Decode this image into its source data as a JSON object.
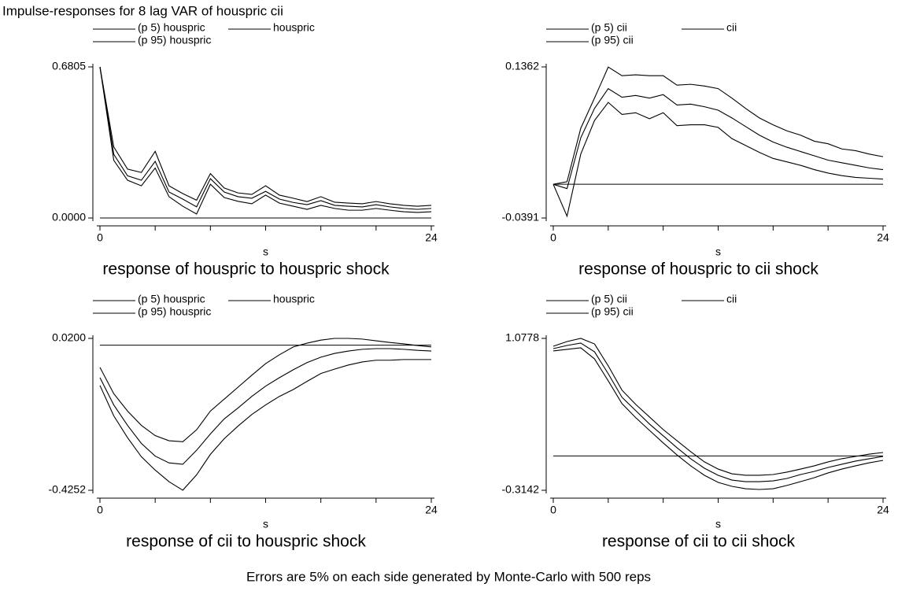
{
  "title": "Impulse-responses for 8 lag VAR of houspric cii",
  "note": "Errors are 5% on each side generated by Monte-Carlo with 500 reps",
  "chart_data": [
    {
      "type": "line",
      "subtitle": "response of houspric to houspric shock",
      "xlabel": "s",
      "x": [
        0,
        1,
        2,
        3,
        4,
        5,
        6,
        7,
        8,
        9,
        10,
        11,
        12,
        13,
        14,
        15,
        16,
        17,
        18,
        19,
        20,
        21,
        22,
        23,
        24
      ],
      "xlim": [
        0,
        24
      ],
      "xticks": [
        0,
        24
      ],
      "xminorticks": [
        4,
        8,
        12,
        16,
        20
      ],
      "ylim": [
        0,
        0.6805
      ],
      "yticks": [
        {
          "value": 0,
          "label": "0.0000"
        },
        0.6805
      ],
      "hline": 0,
      "series": [
        {
          "name": "(p 5) houspric",
          "color": "#000000",
          "values": [
            0.6805,
            0.26,
            0.17,
            0.145,
            0.225,
            0.096,
            0.053,
            0.018,
            0.152,
            0.092,
            0.075,
            0.064,
            0.103,
            0.067,
            0.053,
            0.039,
            0.057,
            0.043,
            0.035,
            0.035,
            0.043,
            0.035,
            0.028,
            0.025,
            0.028
          ]
        },
        {
          "name": "houspric",
          "color": "#000000",
          "values": [
            0.6805,
            0.287,
            0.19,
            0.17,
            0.255,
            0.117,
            0.085,
            0.05,
            0.177,
            0.117,
            0.096,
            0.089,
            0.12,
            0.085,
            0.07,
            0.06,
            0.078,
            0.057,
            0.053,
            0.05,
            0.06,
            0.05,
            0.043,
            0.039,
            0.043
          ]
        },
        {
          "name": "(p 95) houspric",
          "color": "#000000",
          "values": [
            0.6805,
            0.32,
            0.22,
            0.205,
            0.3,
            0.145,
            0.11,
            0.08,
            0.2,
            0.135,
            0.113,
            0.106,
            0.145,
            0.103,
            0.089,
            0.074,
            0.096,
            0.071,
            0.067,
            0.064,
            0.074,
            0.064,
            0.057,
            0.053,
            0.057
          ]
        }
      ]
    },
    {
      "type": "line",
      "subtitle": "response of houspric to cii shock",
      "xlabel": "s",
      "x": [
        0,
        1,
        2,
        3,
        4,
        5,
        6,
        7,
        8,
        9,
        10,
        11,
        12,
        13,
        14,
        15,
        16,
        17,
        18,
        19,
        20,
        21,
        22,
        23,
        24
      ],
      "xlim": [
        0,
        24
      ],
      "xticks": [
        0,
        24
      ],
      "xminorticks": [
        4,
        8,
        12,
        16,
        20
      ],
      "ylim": [
        -0.0391,
        0.1362
      ],
      "yticks": [
        -0.0391,
        0.1362
      ],
      "hline": 0,
      "series": [
        {
          "name": "(p 5) cii",
          "color": "#000000",
          "values": [
            0,
            -0.037,
            0.035,
            0.074,
            0.095,
            0.081,
            0.083,
            0.076,
            0.083,
            0.068,
            0.069,
            0.069,
            0.066,
            0.053,
            0.045,
            0.037,
            0.03,
            0.026,
            0.022,
            0.017,
            0.013,
            0.01,
            0.008,
            0.007,
            0.006
          ]
        },
        {
          "name": "cii",
          "color": "#000000",
          "values": [
            0,
            -0.005,
            0.054,
            0.088,
            0.111,
            0.101,
            0.103,
            0.1,
            0.104,
            0.092,
            0.093,
            0.09,
            0.086,
            0.077,
            0.067,
            0.057,
            0.049,
            0.043,
            0.038,
            0.033,
            0.028,
            0.025,
            0.022,
            0.019,
            0.017
          ]
        },
        {
          "name": "(p 95) cii",
          "color": "#000000",
          "values": [
            0,
            0.003,
            0.065,
            0.1,
            0.136,
            0.126,
            0.127,
            0.126,
            0.126,
            0.115,
            0.116,
            0.114,
            0.111,
            0.1,
            0.088,
            0.077,
            0.069,
            0.062,
            0.057,
            0.05,
            0.047,
            0.041,
            0.039,
            0.035,
            0.032
          ]
        }
      ]
    },
    {
      "type": "line",
      "subtitle": "response of cii to houspric shock",
      "xlabel": "s",
      "x": [
        0,
        1,
        2,
        3,
        4,
        5,
        6,
        7,
        8,
        9,
        10,
        11,
        12,
        13,
        14,
        15,
        16,
        17,
        18,
        19,
        20,
        21,
        22,
        23,
        24
      ],
      "xlim": [
        0,
        24
      ],
      "xticks": [
        0,
        24
      ],
      "xminorticks": [
        4,
        8,
        12,
        16,
        20
      ],
      "ylim": [
        -0.4252,
        0.02
      ],
      "yticks": [
        -0.4252,
        {
          "value": 0.02,
          "label": "0.0200"
        }
      ],
      "hline": 0,
      "series": [
        {
          "name": "(p 5) houspric",
          "color": "#000000",
          "values": [
            -0.118,
            -0.207,
            -0.271,
            -0.327,
            -0.366,
            -0.4,
            -0.425,
            -0.38,
            -0.32,
            -0.274,
            -0.237,
            -0.203,
            -0.175,
            -0.15,
            -0.13,
            -0.106,
            -0.083,
            -0.07,
            -0.058,
            -0.049,
            -0.044,
            -0.044,
            -0.042,
            -0.042,
            -0.042
          ]
        },
        {
          "name": "houspric",
          "color": "#000000",
          "values": [
            -0.095,
            -0.175,
            -0.235,
            -0.288,
            -0.325,
            -0.345,
            -0.349,
            -0.308,
            -0.26,
            -0.216,
            -0.184,
            -0.15,
            -0.12,
            -0.095,
            -0.072,
            -0.051,
            -0.035,
            -0.024,
            -0.017,
            -0.012,
            -0.01,
            -0.01,
            -0.012,
            -0.015,
            -0.017
          ]
        },
        {
          "name": "(p 95) houspric",
          "color": "#000000",
          "values": [
            -0.065,
            -0.142,
            -0.193,
            -0.235,
            -0.265,
            -0.28,
            -0.283,
            -0.248,
            -0.193,
            -0.158,
            -0.123,
            -0.088,
            -0.054,
            -0.028,
            -0.005,
            0.006,
            0.015,
            0.02,
            0.02,
            0.018,
            0.013,
            0.008,
            0.004,
            -0.001,
            -0.005
          ]
        }
      ]
    },
    {
      "type": "line",
      "subtitle": "response of cii to cii shock",
      "xlabel": "s",
      "x": [
        0,
        1,
        2,
        3,
        4,
        5,
        6,
        7,
        8,
        9,
        10,
        11,
        12,
        13,
        14,
        15,
        16,
        17,
        18,
        19,
        20,
        21,
        22,
        23,
        24
      ],
      "xlim": [
        0,
        24
      ],
      "xticks": [
        0,
        24
      ],
      "xminorticks": [
        4,
        8,
        12,
        16,
        20
      ],
      "ylim": [
        -0.3142,
        1.0778
      ],
      "yticks": [
        -0.3142,
        1.0778
      ],
      "hline": 0,
      "series": [
        {
          "name": "(p 5) cii",
          "color": "#000000",
          "values": [
            0.963,
            0.977,
            0.992,
            0.89,
            0.689,
            0.48,
            0.351,
            0.235,
            0.12,
            0.01,
            -0.09,
            -0.177,
            -0.242,
            -0.278,
            -0.3,
            -0.307,
            -0.3,
            -0.27,
            -0.235,
            -0.199,
            -0.155,
            -0.12,
            -0.09,
            -0.062,
            -0.04
          ]
        },
        {
          "name": "cii",
          "color": "#000000",
          "values": [
            0.984,
            1.013,
            1.035,
            0.955,
            0.754,
            0.538,
            0.416,
            0.293,
            0.185,
            0.076,
            -0.025,
            -0.112,
            -0.177,
            -0.221,
            -0.235,
            -0.235,
            -0.228,
            -0.206,
            -0.17,
            -0.141,
            -0.105,
            -0.076,
            -0.047,
            -0.025,
            -0.004
          ]
        },
        {
          "name": "(p 95) cii",
          "color": "#000000",
          "values": [
            1.006,
            1.049,
            1.078,
            1.027,
            0.826,
            0.603,
            0.473,
            0.358,
            0.242,
            0.141,
            0.04,
            -0.054,
            -0.12,
            -0.163,
            -0.177,
            -0.177,
            -0.17,
            -0.148,
            -0.12,
            -0.09,
            -0.054,
            -0.025,
            -0.004,
            0.017,
            0.032
          ]
        }
      ]
    }
  ]
}
